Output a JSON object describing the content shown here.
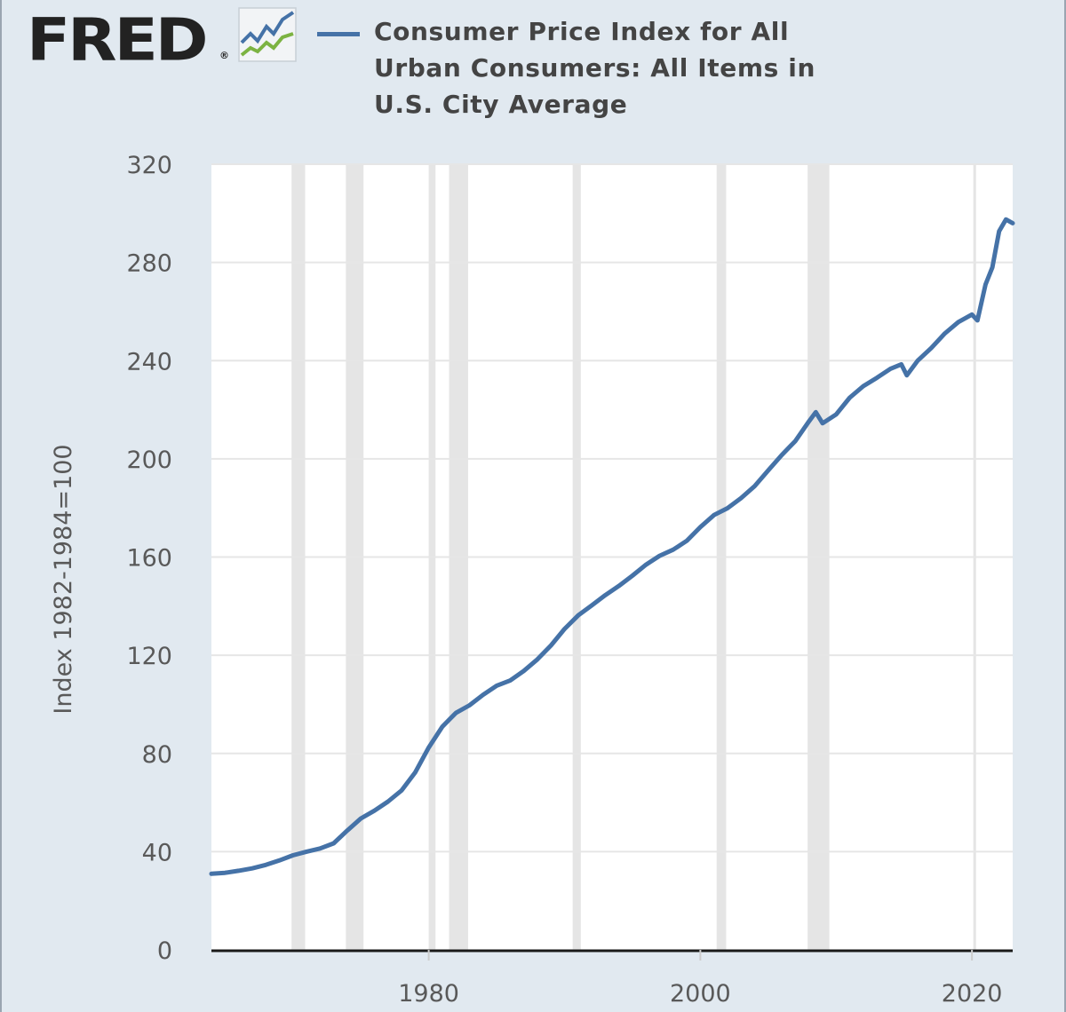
{
  "logo": {
    "text": "FRED",
    "registered": "®",
    "icon": "fred-chart-logo-icon",
    "icon_colors": [
      "#4572a7",
      "#7cb342"
    ]
  },
  "legend": {
    "label": "Consumer Price Index for All Urban Consumers: All Items in U.S. City Average",
    "color": "#4572a7"
  },
  "colors": {
    "background": "#e1e9f0",
    "plot_background": "#ffffff",
    "series": "#4572a7",
    "recession_band": "#e5e5e5",
    "gridline": "#e6e6e6"
  },
  "chart_data": {
    "type": "line",
    "title": "",
    "xlabel": "",
    "ylabel": "Index 1982-1984=100",
    "xlim": [
      1964,
      2023
    ],
    "ylim": [
      0,
      320
    ],
    "x_ticks": [
      1980,
      2000,
      2020
    ],
    "y_ticks": [
      0,
      40,
      80,
      120,
      160,
      200,
      240,
      280,
      320
    ],
    "grid": "horizontal",
    "legend": "top",
    "recessions": [
      [
        1969.9,
        1970.9
      ],
      [
        1973.9,
        1975.2
      ],
      [
        1980.0,
        1980.5
      ],
      [
        1981.5,
        1982.9
      ],
      [
        1990.6,
        1991.2
      ],
      [
        2001.2,
        2001.9
      ],
      [
        2007.9,
        2009.5
      ],
      [
        2020.1,
        2020.3
      ]
    ],
    "series": [
      {
        "name": "Consumer Price Index for All Urban Consumers: All Items in U.S. City Average",
        "x": [
          1964,
          1965,
          1966,
          1967,
          1968,
          1969,
          1970,
          1971,
          1972,
          1973,
          1974,
          1975,
          1976,
          1977,
          1978,
          1979,
          1980,
          1981,
          1982,
          1983,
          1984,
          1985,
          1986,
          1987,
          1988,
          1989,
          1990,
          1991,
          1992,
          1993,
          1994,
          1995,
          1996,
          1997,
          1998,
          1999,
          2000,
          2001,
          2002,
          2003,
          2004,
          2005,
          2006,
          2007,
          2008,
          2008.5,
          2009,
          2010,
          2011,
          2012,
          2013,
          2014,
          2014.8,
          2015.2,
          2016,
          2017,
          2018,
          2019,
          2020,
          2020.4,
          2021,
          2021.5,
          2022,
          2022.5,
          2023
        ],
        "y": [
          31.0,
          31.4,
          32.2,
          33.2,
          34.6,
          36.4,
          38.5,
          40.0,
          41.3,
          43.4,
          48.6,
          53.5,
          56.7,
          60.4,
          64.9,
          72.2,
          82.4,
          90.9,
          96.5,
          99.6,
          103.9,
          107.6,
          109.7,
          113.6,
          118.3,
          124.0,
          130.7,
          136.2,
          140.3,
          144.5,
          148.2,
          152.4,
          156.9,
          160.5,
          163.0,
          166.6,
          172.2,
          177.1,
          179.9,
          184.0,
          188.9,
          195.3,
          201.6,
          207.3,
          215.3,
          219.0,
          214.5,
          218.1,
          224.9,
          229.6,
          233.0,
          236.7,
          238.5,
          234.0,
          240.0,
          245.1,
          251.1,
          255.7,
          258.8,
          256.4,
          271.0,
          278.0,
          292.7,
          297.5,
          296.0
        ]
      }
    ]
  }
}
